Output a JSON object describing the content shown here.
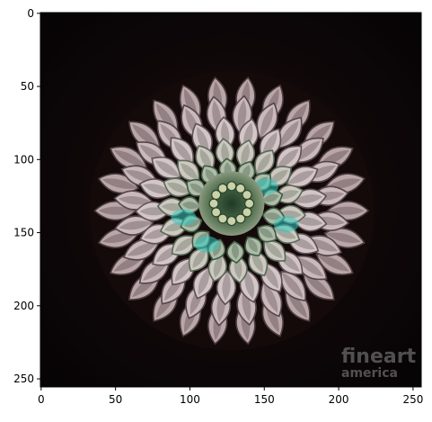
{
  "chart_data": {
    "type": "image",
    "image_width": 256,
    "image_height": 256,
    "xlim": [
      -0.5,
      255.5
    ],
    "ylim": [
      255.5,
      -0.5
    ],
    "x_ticks": [
      0,
      50,
      100,
      150,
      200,
      250
    ],
    "y_ticks": [
      0,
      50,
      100,
      150,
      200,
      250
    ],
    "grid": false,
    "background_color": "#0c0706",
    "subject": {
      "center": [
        128,
        135
      ],
      "radius_x": 92,
      "radius_y": 90,
      "petal_color": "#c8b8b8",
      "petal_shadow": "#5a4848",
      "center_color": "#3a5a40",
      "accent_color": "#33c8c0"
    },
    "watermark": {
      "line1": "fineart",
      "line2": "america"
    }
  }
}
